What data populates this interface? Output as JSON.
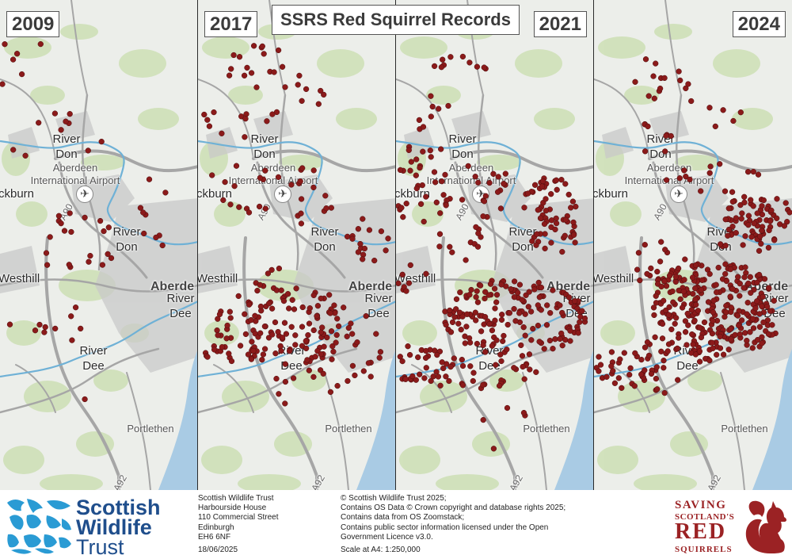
{
  "title": "SSRS Red Squirrel Records",
  "panels": [
    {
      "year": "2009"
    },
    {
      "year": "2017"
    },
    {
      "year": "2021"
    },
    {
      "year": "2024"
    }
  ],
  "place_names": {
    "river_don_upper": "River\nDon",
    "airport": "Aberdeen\nInternational Airport",
    "dyce_partial": "ckburn",
    "river_don_lower": "River\nDon",
    "westhill": "Westhill",
    "aberdeen_partial": "Aberde",
    "river_dee_east": "River\nDee",
    "river_dee": "River\nDee",
    "portlethen": "Portlethen",
    "road_a90": "A90",
    "road_a92": "A92"
  },
  "colors": {
    "record_dot": "#8b1a1a",
    "river": "#6fb1d6",
    "sea": "#a9cbe4",
    "green_space": "#cfe0b8",
    "urban": "#c9c9c9",
    "road": "#a6a6a6",
    "swt_blue": "#1f4e8c",
    "ssrs_red": "#9b2224"
  },
  "footer": {
    "org_logo": {
      "line1": "Scottish",
      "line2": "Wildlife",
      "line3": "Trust"
    },
    "address": [
      "Scottish Wildlife Trust",
      "Harbourside House",
      "110 Commercial Street",
      "Edinburgh",
      "EH6 6NF"
    ],
    "date": "18/06/2025",
    "credits": [
      "© Scottish Wildlife Trust 2025;",
      "Contains OS Data © Crown copyright and database rights 2025;",
      "Contains data from OS Zoomstack;",
      "Contains public sector information licensed under the Open",
      "Government Licence v3.0."
    ],
    "scale": "Scale at A4: 1:250,000",
    "partner_logo": {
      "line1": "SAVING",
      "line2": "SCOTLAND'S",
      "line3": "RED",
      "line4": "SQUIRRELS"
    }
  }
}
